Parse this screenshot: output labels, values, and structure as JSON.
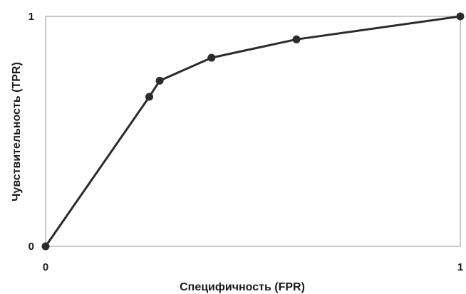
{
  "chart_data": {
    "type": "line",
    "title": "",
    "xlabel": "Специфичность (FPR)",
    "ylabel": "Чувствительность (TPR)",
    "xlim": [
      0,
      1
    ],
    "ylim": [
      0,
      1
    ],
    "x_ticks": [
      "0",
      "1"
    ],
    "y_ticks": [
      "0",
      "1"
    ],
    "grid": false,
    "series": [
      {
        "x": [
          0,
          0.25,
          0.275,
          0.4,
          0.605,
          1.0
        ],
        "y": [
          0,
          0.65,
          0.72,
          0.82,
          0.9,
          1.0
        ]
      }
    ],
    "colors": {
      "line": "#2b2b2b",
      "marker": "#2b2b2b",
      "frame": "#b5b5b5"
    }
  }
}
